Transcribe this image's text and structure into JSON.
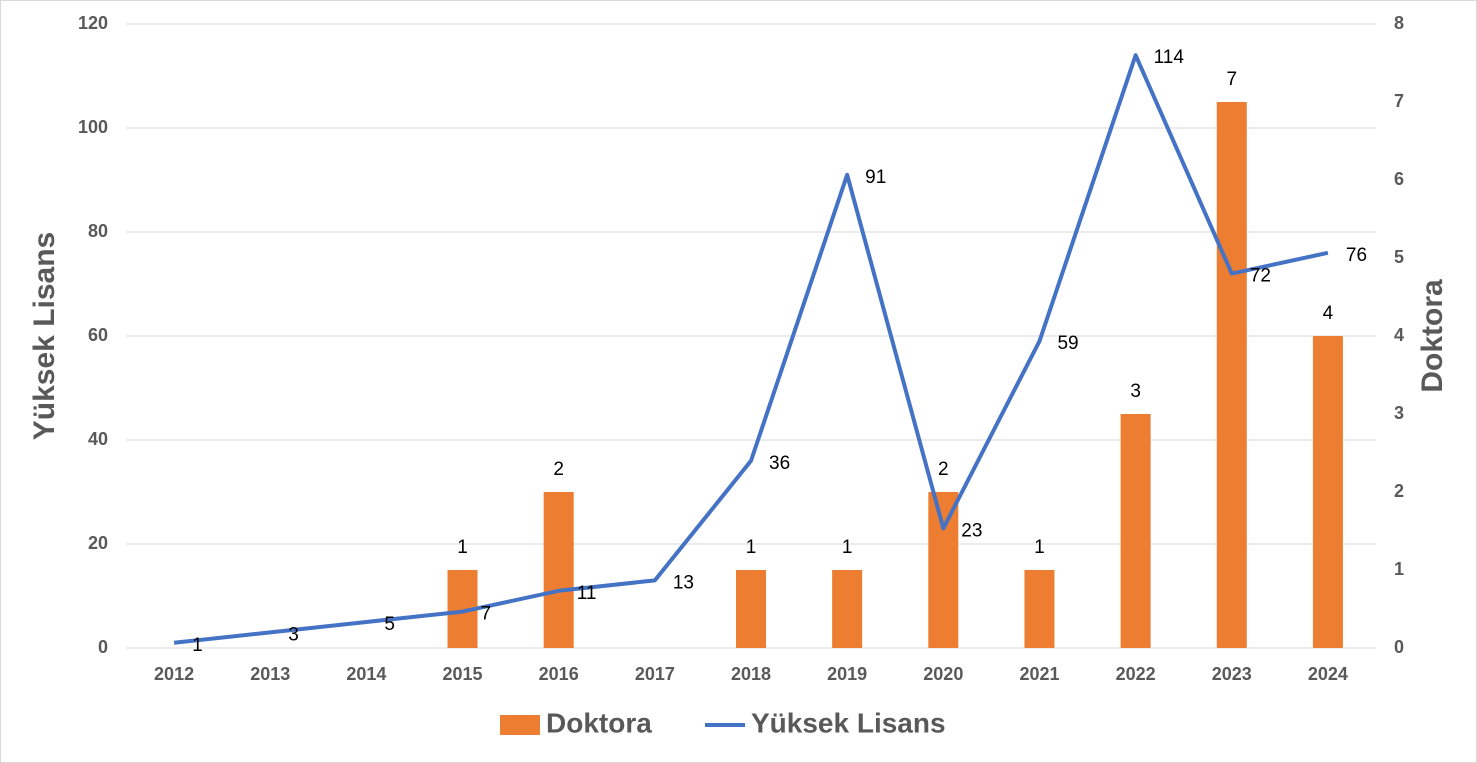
{
  "chart_data": {
    "type": "combo",
    "categories": [
      "2012",
      "2013",
      "2014",
      "2015",
      "2016",
      "2017",
      "2018",
      "2019",
      "2020",
      "2021",
      "2022",
      "2023",
      "2024"
    ],
    "series": [
      {
        "name": "Doktora",
        "type": "bar",
        "axis": "y2",
        "color": "#ed7d31",
        "values": [
          null,
          null,
          null,
          1,
          2,
          null,
          1,
          1,
          2,
          1,
          3,
          7,
          4
        ]
      },
      {
        "name": "Yüksek Lisans",
        "type": "line",
        "color": "#4472c4",
        "values": [
          1,
          3,
          5,
          7,
          11,
          13,
          36,
          91,
          23,
          59,
          114,
          72,
          76
        ]
      }
    ],
    "ylabel": "Yüksek Lisans",
    "y2label": "Doktora",
    "ylim": [
      0,
      120
    ],
    "yticks": [
      0,
      20,
      40,
      60,
      80,
      100,
      120
    ],
    "y2lim": [
      0,
      8
    ],
    "y2ticks": [
      0,
      1,
      2,
      3,
      4,
      5,
      6,
      7,
      8
    ],
    "grid": true,
    "legend": "bottom"
  }
}
